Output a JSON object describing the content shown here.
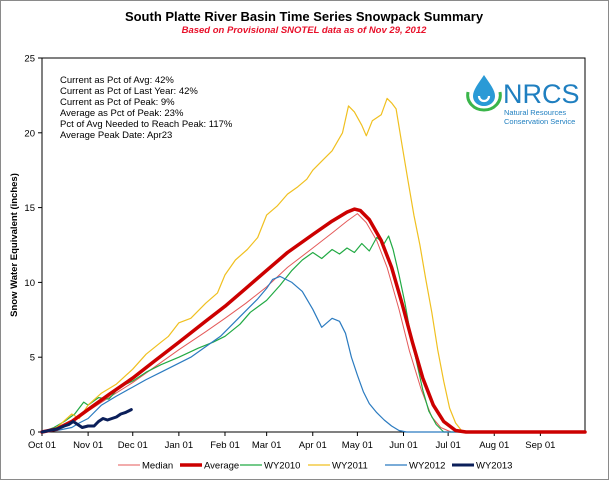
{
  "chart_data": {
    "type": "line",
    "title": "South Platte River Basin Time Series Snowpack Summary",
    "subtitle": "Based on Provisional SNOTEL data as of Nov 29, 2012",
    "ylabel": "Snow Water Equivalent (inches)",
    "xlabel": "",
    "ylim": [
      0,
      25
    ],
    "yticks": [
      0,
      5,
      10,
      15,
      20,
      25
    ],
    "xlim_days": [
      0,
      365
    ],
    "xticks": [
      {
        "label": "Oct 01",
        "day": 0
      },
      {
        "label": "Nov 01",
        "day": 31
      },
      {
        "label": "Dec 01",
        "day": 61
      },
      {
        "label": "Jan 01",
        "day": 92
      },
      {
        "label": "Feb 01",
        "day": 123
      },
      {
        "label": "Mar 01",
        "day": 151
      },
      {
        "label": "Apr 01",
        "day": 182
      },
      {
        "label": "May 01",
        "day": 212
      },
      {
        "label": "Jun 01",
        "day": 243
      },
      {
        "label": "Jul 01",
        "day": 273
      },
      {
        "label": "Aug 01",
        "day": 304
      },
      {
        "label": "Sep 01",
        "day": 335
      }
    ],
    "grid": false,
    "legend_position": "bottom",
    "stats": [
      "Current as Pct of Avg: 42%",
      "Current as Pct of Last Year: 42%",
      "Current as Pct of Peak: 9%",
      "Average as Pct of Peak: 23%",
      "Pct of Avg Needed to Reach Peak: 117%",
      "Average Peak Date: Apr23"
    ],
    "series": [
      {
        "name": "Median",
        "color": "#e45a5a",
        "width": 1,
        "points": [
          [
            0,
            0
          ],
          [
            10,
            0.2
          ],
          [
            20,
            0.6
          ],
          [
            31,
            1.4
          ],
          [
            45,
            2.3
          ],
          [
            61,
            3.3
          ],
          [
            75,
            4.3
          ],
          [
            92,
            5.5
          ],
          [
            110,
            6.7
          ],
          [
            123,
            7.6
          ],
          [
            137,
            8.6
          ],
          [
            151,
            9.7
          ],
          [
            165,
            11.0
          ],
          [
            182,
            12.3
          ],
          [
            195,
            13.3
          ],
          [
            205,
            14.1
          ],
          [
            212,
            14.6
          ],
          [
            218,
            14.0
          ],
          [
            225,
            12.8
          ],
          [
            232,
            11.0
          ],
          [
            240,
            8.2
          ],
          [
            247,
            5.4
          ],
          [
            255,
            2.8
          ],
          [
            262,
            1.0
          ],
          [
            268,
            0.3
          ],
          [
            275,
            0
          ],
          [
            365,
            0
          ]
        ]
      },
      {
        "name": "Average",
        "color": "#cc0000",
        "width": 3.5,
        "points": [
          [
            0,
            0
          ],
          [
            10,
            0.2
          ],
          [
            20,
            0.7
          ],
          [
            31,
            1.5
          ],
          [
            45,
            2.5
          ],
          [
            61,
            3.6
          ],
          [
            75,
            4.7
          ],
          [
            92,
            6.0
          ],
          [
            110,
            7.4
          ],
          [
            123,
            8.4
          ],
          [
            137,
            9.6
          ],
          [
            151,
            10.8
          ],
          [
            165,
            12.0
          ],
          [
            182,
            13.2
          ],
          [
            195,
            14.1
          ],
          [
            205,
            14.7
          ],
          [
            210,
            14.9
          ],
          [
            214,
            14.8
          ],
          [
            220,
            14.2
          ],
          [
            228,
            12.8
          ],
          [
            235,
            11.0
          ],
          [
            242,
            8.6
          ],
          [
            249,
            6.0
          ],
          [
            256,
            3.6
          ],
          [
            263,
            1.8
          ],
          [
            270,
            0.7
          ],
          [
            278,
            0.1
          ],
          [
            285,
            0
          ],
          [
            365,
            0
          ]
        ]
      },
      {
        "name": "WY2010",
        "color": "#22aa44",
        "width": 1.2,
        "points": [
          [
            0,
            0
          ],
          [
            8,
            0.3
          ],
          [
            15,
            0.7
          ],
          [
            22,
            1.2
          ],
          [
            28,
            2.0
          ],
          [
            31,
            1.8
          ],
          [
            38,
            2.3
          ],
          [
            45,
            2.2
          ],
          [
            52,
            3.0
          ],
          [
            61,
            3.4
          ],
          [
            70,
            4.0
          ],
          [
            80,
            4.5
          ],
          [
            92,
            5.0
          ],
          [
            105,
            5.6
          ],
          [
            115,
            6.0
          ],
          [
            123,
            6.4
          ],
          [
            133,
            7.2
          ],
          [
            140,
            8.0
          ],
          [
            151,
            8.8
          ],
          [
            160,
            9.8
          ],
          [
            168,
            10.8
          ],
          [
            175,
            11.5
          ],
          [
            182,
            12.0
          ],
          [
            188,
            11.6
          ],
          [
            195,
            12.2
          ],
          [
            200,
            11.9
          ],
          [
            205,
            12.3
          ],
          [
            210,
            12.0
          ],
          [
            215,
            12.6
          ],
          [
            220,
            12.1
          ],
          [
            225,
            13.0
          ],
          [
            230,
            12.6
          ],
          [
            233,
            13.1
          ],
          [
            236,
            12.2
          ],
          [
            240,
            10.5
          ],
          [
            244,
            8.6
          ],
          [
            248,
            6.4
          ],
          [
            252,
            4.6
          ],
          [
            256,
            2.8
          ],
          [
            260,
            1.4
          ],
          [
            265,
            0.5
          ],
          [
            270,
            0
          ],
          [
            365,
            0
          ]
        ]
      },
      {
        "name": "WY2011",
        "color": "#f0c020",
        "width": 1.2,
        "points": [
          [
            0,
            0
          ],
          [
            10,
            0.3
          ],
          [
            20,
            1.2
          ],
          [
            25,
            0.9
          ],
          [
            31,
            1.8
          ],
          [
            40,
            2.6
          ],
          [
            50,
            3.2
          ],
          [
            61,
            4.2
          ],
          [
            70,
            5.2
          ],
          [
            80,
            6.0
          ],
          [
            85,
            6.4
          ],
          [
            92,
            7.3
          ],
          [
            100,
            7.6
          ],
          [
            110,
            8.6
          ],
          [
            118,
            9.3
          ],
          [
            123,
            10.5
          ],
          [
            130,
            11.5
          ],
          [
            138,
            12.2
          ],
          [
            145,
            13.0
          ],
          [
            151,
            14.5
          ],
          [
            158,
            15.1
          ],
          [
            165,
            15.9
          ],
          [
            172,
            16.4
          ],
          [
            178,
            16.9
          ],
          [
            182,
            17.5
          ],
          [
            188,
            18.1
          ],
          [
            195,
            18.8
          ],
          [
            202,
            20.0
          ],
          [
            206,
            21.8
          ],
          [
            210,
            21.4
          ],
          [
            215,
            20.5
          ],
          [
            218,
            19.8
          ],
          [
            222,
            20.8
          ],
          [
            228,
            21.2
          ],
          [
            232,
            22.3
          ],
          [
            235,
            22.0
          ],
          [
            238,
            21.6
          ],
          [
            242,
            19.2
          ],
          [
            246,
            16.8
          ],
          [
            250,
            14.5
          ],
          [
            254,
            12.5
          ],
          [
            258,
            10.2
          ],
          [
            262,
            8.0
          ],
          [
            266,
            5.5
          ],
          [
            270,
            3.4
          ],
          [
            274,
            1.6
          ],
          [
            278,
            0.6
          ],
          [
            282,
            0.1
          ],
          [
            285,
            0
          ],
          [
            365,
            0
          ]
        ]
      },
      {
        "name": "WY2012",
        "color": "#2b7bc0",
        "width": 1.2,
        "points": [
          [
            0,
            0
          ],
          [
            10,
            0.1
          ],
          [
            20,
            0.3
          ],
          [
            25,
            0.6
          ],
          [
            31,
            0.9
          ],
          [
            40,
            1.8
          ],
          [
            50,
            2.4
          ],
          [
            61,
            3.0
          ],
          [
            70,
            3.5
          ],
          [
            80,
            4.0
          ],
          [
            92,
            4.6
          ],
          [
            100,
            5.0
          ],
          [
            110,
            5.7
          ],
          [
            120,
            6.4
          ],
          [
            130,
            7.4
          ],
          [
            138,
            8.2
          ],
          [
            145,
            8.9
          ],
          [
            151,
            9.6
          ],
          [
            155,
            10.2
          ],
          [
            160,
            10.4
          ],
          [
            168,
            10.0
          ],
          [
            175,
            9.4
          ],
          [
            182,
            8.2
          ],
          [
            188,
            7.0
          ],
          [
            195,
            7.6
          ],
          [
            200,
            7.4
          ],
          [
            204,
            6.6
          ],
          [
            208,
            5.0
          ],
          [
            212,
            3.8
          ],
          [
            216,
            2.7
          ],
          [
            220,
            1.9
          ],
          [
            225,
            1.3
          ],
          [
            230,
            0.8
          ],
          [
            235,
            0.4
          ],
          [
            240,
            0.1
          ],
          [
            245,
            0
          ],
          [
            365,
            0
          ]
        ]
      },
      {
        "name": "WY2013",
        "color": "#0b1f5a",
        "width": 3,
        "points": [
          [
            0,
            0
          ],
          [
            5,
            0.1
          ],
          [
            10,
            0.2
          ],
          [
            15,
            0.4
          ],
          [
            18,
            0.5
          ],
          [
            21,
            0.7
          ],
          [
            24,
            0.5
          ],
          [
            27,
            0.3
          ],
          [
            31,
            0.4
          ],
          [
            35,
            0.4
          ],
          [
            38,
            0.7
          ],
          [
            41,
            0.9
          ],
          [
            44,
            0.8
          ],
          [
            47,
            0.9
          ],
          [
            50,
            1.0
          ],
          [
            53,
            1.2
          ],
          [
            56,
            1.3
          ],
          [
            58,
            1.4
          ],
          [
            60,
            1.5
          ]
        ]
      }
    ]
  },
  "logo": {
    "wordmark": "NRCS",
    "line1": "Natural Resources",
    "line2": "Conservation Service"
  }
}
